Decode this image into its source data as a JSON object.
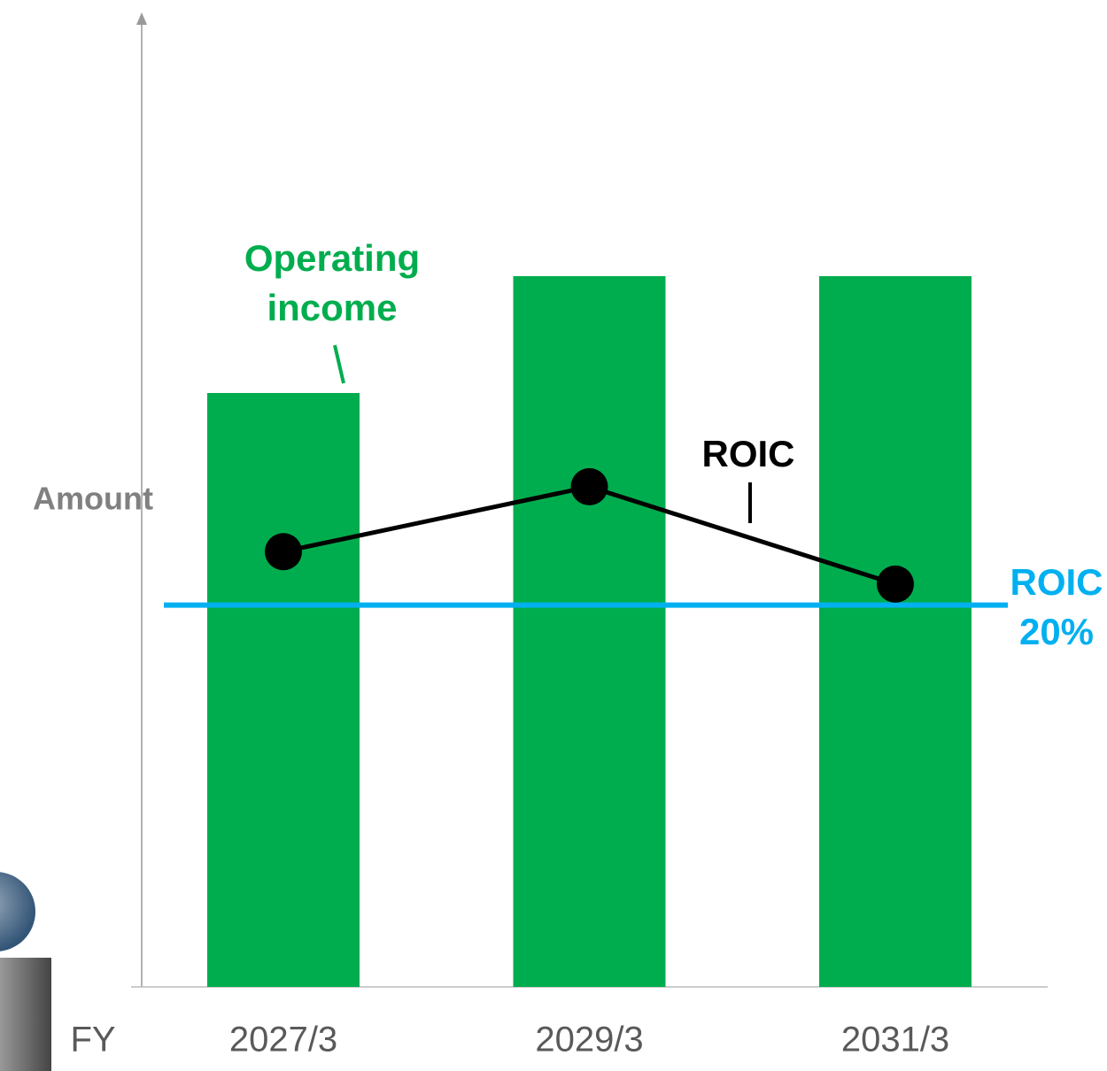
{
  "chart_data": {
    "type": "bar",
    "ylabel": "Amount",
    "xlabel": "FY",
    "categories": [
      "2027/3",
      "2029/3",
      "2031/3"
    ],
    "series": [
      {
        "name": "Operating income",
        "color": "#00ad4e",
        "values": [
          61,
          73,
          73
        ]
      },
      {
        "name": "ROIC",
        "color": "#000000",
        "type": "line",
        "axis": "y2",
        "values": [
          22.8,
          26.2,
          21.1
        ]
      }
    ],
    "ylim": [
      0,
      100
    ],
    "y2lim": [
      0,
      51
    ],
    "reference_line": {
      "label": "ROIC",
      "value": 20,
      "value_label": "20%",
      "color": "#00b0f0"
    }
  }
}
